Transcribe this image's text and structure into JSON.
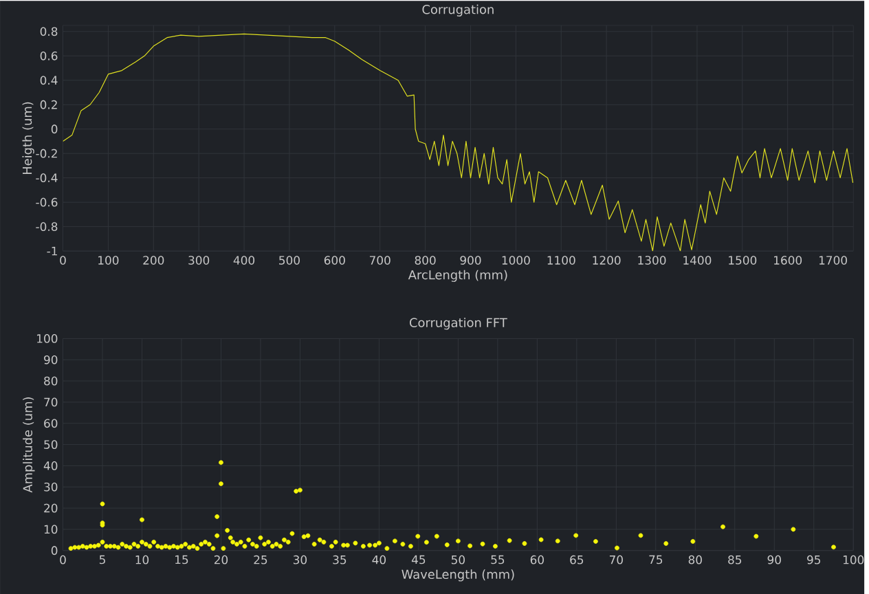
{
  "chart_data": [
    {
      "type": "line",
      "title": "Corrugation",
      "xlabel": "ArcLength (mm)",
      "ylabel": "Heigth (um)",
      "color": "#e0e020",
      "grid": true,
      "xlim": [
        0,
        1745
      ],
      "ylim": [
        -1,
        0.85
      ],
      "xticks": [
        0,
        100,
        200,
        300,
        400,
        500,
        600,
        700,
        800,
        900,
        1000,
        1100,
        1200,
        1300,
        1400,
        1500,
        1600,
        1700
      ],
      "yticks": [
        -1,
        -0.8,
        -0.6,
        -0.4,
        -0.2,
        0,
        0.2,
        0.4,
        0.6,
        0.8
      ],
      "x": [
        0,
        20,
        40,
        60,
        80,
        100,
        130,
        160,
        180,
        200,
        230,
        260,
        300,
        350,
        400,
        450,
        500,
        550,
        580,
        600,
        630,
        660,
        700,
        740,
        760,
        775,
        778,
        785,
        800,
        810,
        820,
        830,
        840,
        850,
        860,
        870,
        880,
        890,
        900,
        910,
        920,
        930,
        940,
        950,
        960,
        970,
        980,
        990,
        1000,
        1010,
        1020,
        1030,
        1040,
        1050,
        1070,
        1090,
        1110,
        1130,
        1145,
        1166,
        1191,
        1206,
        1226,
        1241,
        1257,
        1277,
        1287,
        1302,
        1312,
        1327,
        1342,
        1363,
        1373,
        1388,
        1408,
        1418,
        1428,
        1443,
        1459,
        1474,
        1489,
        1499,
        1514,
        1529,
        1539,
        1549,
        1564,
        1584,
        1600,
        1610,
        1625,
        1645,
        1660,
        1671,
        1686,
        1701,
        1716,
        1731,
        1744
      ],
      "values": [
        -0.1,
        -0.05,
        0.15,
        0.2,
        0.3,
        0.45,
        0.48,
        0.55,
        0.6,
        0.68,
        0.75,
        0.77,
        0.76,
        0.77,
        0.78,
        0.77,
        0.76,
        0.75,
        0.75,
        0.72,
        0.65,
        0.57,
        0.48,
        0.4,
        0.27,
        0.28,
        0.0,
        -0.1,
        -0.12,
        -0.25,
        -0.1,
        -0.3,
        -0.05,
        -0.3,
        -0.1,
        -0.2,
        -0.4,
        -0.1,
        -0.4,
        -0.15,
        -0.4,
        -0.2,
        -0.45,
        -0.15,
        -0.4,
        -0.45,
        -0.25,
        -0.6,
        -0.4,
        -0.2,
        -0.45,
        -0.35,
        -0.6,
        -0.35,
        -0.4,
        -0.62,
        -0.42,
        -0.62,
        -0.42,
        -0.7,
        -0.46,
        -0.74,
        -0.59,
        -0.85,
        -0.66,
        -0.92,
        -0.74,
        -1.0,
        -0.72,
        -0.96,
        -0.77,
        -1.0,
        -0.74,
        -0.99,
        -0.62,
        -0.77,
        -0.51,
        -0.7,
        -0.4,
        -0.51,
        -0.22,
        -0.36,
        -0.25,
        -0.18,
        -0.4,
        -0.16,
        -0.4,
        -0.16,
        -0.42,
        -0.16,
        -0.42,
        -0.18,
        -0.44,
        -0.18,
        -0.42,
        -0.18,
        -0.4,
        -0.16,
        -0.44
      ]
    },
    {
      "type": "scatter",
      "title": "Corrugation FFT",
      "xlabel": "WaveLength (mm)",
      "ylabel": "Amplitude (um)",
      "color": "#f5f50a",
      "grid": true,
      "marker": "circle",
      "xlim": [
        0,
        100
      ],
      "ylim": [
        0,
        100
      ],
      "xticks": [
        0,
        5,
        10,
        15,
        20,
        25,
        30,
        35,
        40,
        45,
        50,
        55,
        60,
        65,
        70,
        75,
        80,
        85,
        90,
        95,
        100
      ],
      "yticks": [
        0,
        10,
        20,
        30,
        40,
        50,
        60,
        70,
        80,
        90,
        100
      ],
      "x": [
        1,
        1.5,
        2,
        2.5,
        3,
        3.5,
        4,
        4.5,
        5,
        5,
        5,
        5,
        5.5,
        6,
        6.5,
        7,
        7.5,
        8,
        8.5,
        9,
        9.5,
        10,
        10,
        10.5,
        11,
        11.5,
        12,
        12.5,
        13,
        13.5,
        14,
        14.5,
        15,
        15.5,
        16,
        16.5,
        17,
        17.5,
        18,
        18.5,
        19,
        19.5,
        19.5,
        20,
        20,
        20.3,
        20.8,
        21.2,
        21.5,
        22,
        22.5,
        23,
        23.5,
        24,
        24.5,
        25,
        25.5,
        26,
        26.5,
        27,
        27.5,
        28,
        28.5,
        29,
        29.5,
        30,
        30.5,
        31,
        31.8,
        32.5,
        33,
        34,
        34.5,
        35.5,
        36,
        37,
        38,
        38.8,
        39.5,
        40,
        41,
        42,
        43,
        44,
        44.9,
        46,
        47.3,
        48.6,
        50,
        51.5,
        53.1,
        54.7,
        56.5,
        58.4,
        60.5,
        62.6,
        64.9,
        67.4,
        70.1,
        73.1,
        76.3,
        79.7,
        83.5,
        87.7,
        92.4,
        97.5
      ],
      "values": [
        1,
        1.5,
        1.5,
        2,
        1.5,
        2,
        2,
        2.5,
        4,
        12,
        13,
        22,
        2,
        2,
        2,
        1.5,
        3,
        2,
        1.5,
        3,
        2,
        4,
        14.5,
        3,
        2,
        4,
        2,
        1.5,
        2,
        1.5,
        2,
        1.5,
        2,
        3,
        1.5,
        2,
        1,
        3,
        4,
        3,
        1,
        7,
        16,
        31.5,
        41.5,
        1,
        9.5,
        6,
        4,
        3,
        4,
        2,
        5,
        3,
        2,
        6,
        3,
        4,
        2,
        3,
        2,
        5,
        4,
        8,
        28,
        28.5,
        6.5,
        7,
        3,
        5,
        4,
        2,
        4,
        2.5,
        2.5,
        3.5,
        2,
        2.5,
        2.5,
        3.5,
        1,
        4.5,
        3,
        2,
        6.7,
        3.9,
        6.7,
        2.7,
        4.5,
        2.2,
        3.1,
        2,
        4.7,
        3.3,
        5.1,
        4.5,
        7.1,
        4.3,
        1.2,
        7.1,
        3.3,
        4.3,
        11.2,
        6.7,
        10,
        1.6
      ]
    }
  ]
}
